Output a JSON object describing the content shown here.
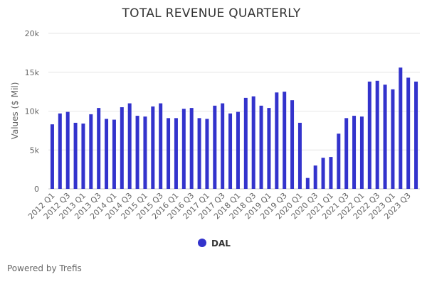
{
  "chart_data": {
    "type": "bar",
    "title": "TOTAL REVENUE QUARTERLY",
    "ylabel": "Values ($ Mil)",
    "xlabel": "",
    "ylim": [
      0,
      20000
    ],
    "yticks": [
      0,
      5000,
      10000,
      15000,
      20000
    ],
    "ytick_labels": [
      "0",
      "5k",
      "10k",
      "15k",
      "20k"
    ],
    "grid": true,
    "legend": "bottom-center",
    "categories": [
      "2012 Q1",
      "2012 Q2",
      "2012 Q3",
      "2012 Q4",
      "2013 Q1",
      "2013 Q2",
      "2013 Q3",
      "2013 Q4",
      "2014 Q1",
      "2014 Q2",
      "2014 Q3",
      "2014 Q4",
      "2015 Q1",
      "2015 Q2",
      "2015 Q3",
      "2015 Q4",
      "2016 Q1",
      "2016 Q2",
      "2016 Q3",
      "2016 Q4",
      "2017 Q1",
      "2017 Q2",
      "2017 Q3",
      "2017 Q4",
      "2018 Q1",
      "2018 Q2",
      "2018 Q3",
      "2018 Q4",
      "2019 Q1",
      "2019 Q2",
      "2019 Q3",
      "2019 Q4",
      "2020 Q1",
      "2020 Q2",
      "2020 Q3",
      "2020 Q4",
      "2021 Q1",
      "2021 Q2",
      "2021 Q3",
      "2021 Q4",
      "2022 Q1",
      "2022 Q2",
      "2022 Q3",
      "2022 Q4",
      "2023 Q1",
      "2023 Q2",
      "2023 Q3",
      "2023 Q4"
    ],
    "x_tick_labels": [
      "2012 Q1",
      "2012 Q3",
      "2013 Q1",
      "2013 Q3",
      "2014 Q1",
      "2014 Q3",
      "2015 Q1",
      "2015 Q3",
      "2016 Q1",
      "2016 Q3",
      "2017 Q1",
      "2017 Q3",
      "2018 Q1",
      "2018 Q3",
      "2019 Q1",
      "2019 Q3",
      "2020 Q1",
      "2020 Q3",
      "2021 Q1",
      "2021 Q3",
      "2022 Q1",
      "2022 Q3",
      "2023 Q1",
      "2023 Q3"
    ],
    "series": [
      {
        "name": "DAL",
        "color": "#3333cc",
        "values": [
          8300,
          9700,
          9900,
          8500,
          8400,
          9600,
          10400,
          9000,
          8900,
          10500,
          11000,
          9400,
          9300,
          10600,
          11000,
          9100,
          9100,
          10300,
          10400,
          9100,
          9000,
          10700,
          11000,
          9700,
          9900,
          11700,
          11900,
          10700,
          10400,
          12400,
          12500,
          11400,
          8500,
          1400,
          3000,
          4000,
          4100,
          7100,
          9100,
          9400,
          9300,
          13800,
          13900,
          13400,
          12800,
          15600,
          14300,
          13800
        ]
      }
    ]
  },
  "credit": "Powered by Trefis"
}
